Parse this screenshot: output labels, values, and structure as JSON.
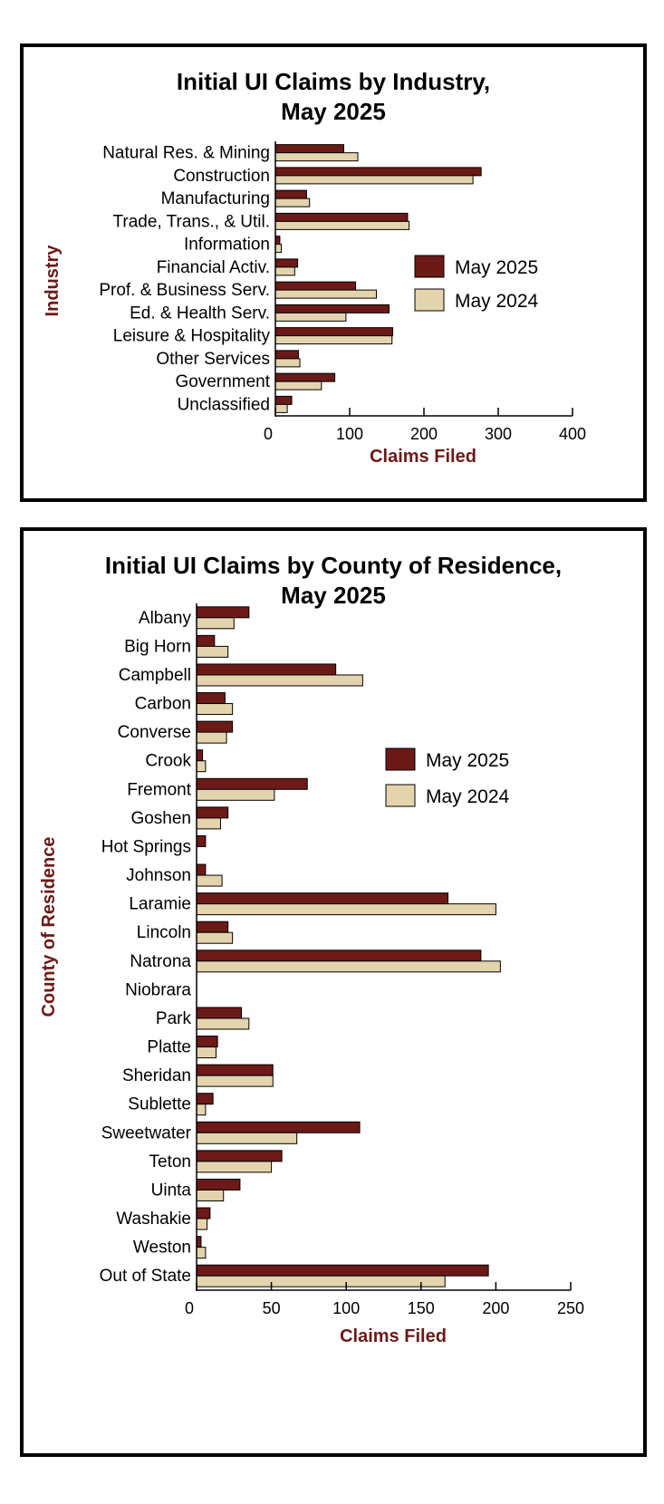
{
  "colors": {
    "current": "#6b1a17",
    "prior": "#e3d4ae",
    "axis_title": "#6b1a17",
    "stroke": "#000000"
  },
  "charts": [
    {
      "id": "industry",
      "title_lines": [
        "Initial UI Claims by Industry,",
        "May 2025"
      ],
      "chart_data": {
        "type": "bar",
        "orientation": "horizontal",
        "title": "Initial UI Claims by Industry, May 2025",
        "xlabel": "Claims Filed",
        "ylabel": "Industry",
        "xlim": [
          0,
          400
        ],
        "xticks": [
          0,
          100,
          200,
          300,
          400
        ],
        "grid": false,
        "legend_position": "right",
        "categories": [
          "Natural Res. & Mining",
          "Construction",
          "Manufacturing",
          "Trade, Trans., & Util.",
          "Information",
          "Financial Activ.",
          "Prof. & Business Serv.",
          "Ed. & Health Serv.",
          "Leisure & Hospitality",
          "Other Services",
          "Government",
          "Unclassified"
        ],
        "series": [
          {
            "name": "May 2025",
            "values": [
              92,
              277,
              42,
              178,
              6,
              30,
              108,
              153,
              158,
              31,
              80,
              22
            ]
          },
          {
            "name": "May 2024",
            "values": [
              111,
              266,
              46,
              180,
              8,
              26,
              136,
              95,
              157,
              33,
              62,
              16
            ]
          }
        ]
      }
    },
    {
      "id": "county",
      "title_lines": [
        "Initial UI Claims by County of Residence,",
        "May 2025"
      ],
      "chart_data": {
        "type": "bar",
        "orientation": "horizontal",
        "title": "Initial UI Claims by County of Residence, May 2025",
        "xlabel": "Claims Filed",
        "ylabel": "County of Residence",
        "xlim": [
          0,
          250
        ],
        "xticks": [
          0,
          50,
          100,
          150,
          200,
          250
        ],
        "grid": false,
        "legend_position": "right",
        "categories": [
          "Albany",
          "Big Horn",
          "Campbell",
          "Carbon",
          "Converse",
          "Crook",
          "Fremont",
          "Goshen",
          "Hot Springs",
          "Johnson",
          "Laramie",
          "Lincoln",
          "Natrona",
          "Niobrara",
          "Park",
          "Platte",
          "Sheridan",
          "Sublette",
          "Sweetwater",
          "Teton",
          "Uinta",
          "Washakie",
          "Weston",
          "Out of State"
        ],
        "series": [
          {
            "name": "May 2025",
            "values": [
              35,
              12,
              93,
              19,
              24,
              4,
              74,
              21,
              6,
              6,
              168,
              21,
              190,
              0,
              30,
              14,
              51,
              11,
              109,
              57,
              29,
              9,
              3,
              195
            ]
          },
          {
            "name": "May 2024",
            "values": [
              25,
              21,
              111,
              24,
              20,
              6,
              52,
              16,
              0,
              17,
              200,
              24,
              203,
              0,
              35,
              13,
              51,
              6,
              67,
              50,
              18,
              7,
              6,
              166
            ]
          }
        ]
      }
    }
  ]
}
